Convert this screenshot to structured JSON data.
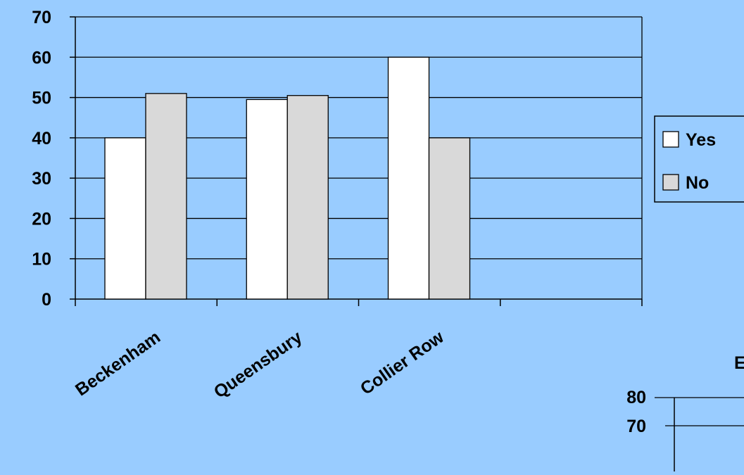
{
  "chart_data": [
    {
      "type": "bar",
      "title": "",
      "xlabel": "",
      "ylabel": "",
      "categories": [
        "Beckenham",
        "Queensbury",
        "Collier Row",
        ""
      ],
      "series": [
        {
          "name": "Yes",
          "values": [
            40,
            49.5,
            60,
            null
          ],
          "color": "#ffffff"
        },
        {
          "name": "No",
          "values": [
            51,
            50.5,
            40,
            null
          ],
          "color": "#d9d9d9"
        }
      ],
      "ylim": [
        0,
        70
      ],
      "yticks": [
        "0",
        "10",
        "20",
        "30",
        "40",
        "50",
        "60",
        "70"
      ],
      "grid": true,
      "legend_position": "right"
    },
    {
      "type": "bar",
      "title": "E",
      "ylim_visible": [
        70,
        80
      ],
      "yticks": [
        "70",
        "80"
      ],
      "note": "partially visible second chart"
    }
  ]
}
